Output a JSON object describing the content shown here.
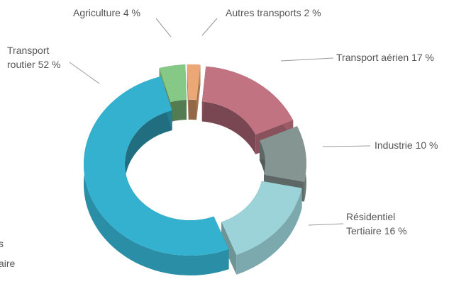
{
  "chart_data": {
    "type": "donut3d",
    "categories": [
      "Agriculture",
      "Autres transports",
      "Transport aérien",
      "Industrie",
      "Résidentiel Tertiaire",
      "Transport routier"
    ],
    "values": [
      4,
      2,
      17,
      10,
      16,
      52
    ],
    "value_labels": [
      "4 %",
      "2 %",
      "17 %",
      "10 %",
      "16 %",
      "52 %"
    ],
    "colors": [
      "#86c886",
      "#eba775",
      "#c27382",
      "#859591",
      "#9bd3d8",
      "#33b1cf"
    ],
    "legend_fragments": [
      "s",
      "aire"
    ]
  }
}
